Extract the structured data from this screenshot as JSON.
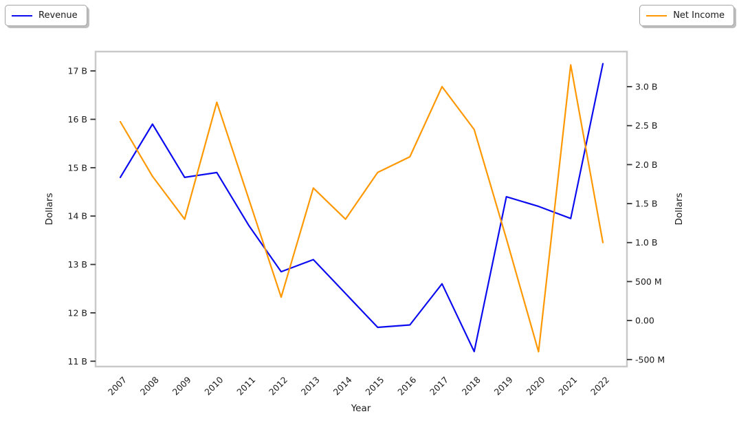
{
  "legend": {
    "revenue": {
      "label": "Revenue",
      "color": "#0b0bf0"
    },
    "net_income": {
      "label": "Net Income",
      "color": "#ff9800"
    }
  },
  "chart_data": {
    "type": "line",
    "title": "",
    "xlabel": "Year",
    "ylabel_left": "Dollars",
    "ylabel_right": "Dollars",
    "grid": false,
    "x_tick_labels": [
      "2007",
      "2008",
      "2009",
      "2010",
      "2011",
      "2012",
      "2013",
      "2014",
      "2015",
      "2016",
      "2017",
      "2018",
      "2019",
      "2020",
      "2021",
      "2022"
    ],
    "x": [
      2007,
      2008,
      2009,
      2010,
      2011,
      2012,
      2013,
      2014,
      2015,
      2016,
      2017,
      2018,
      2019,
      2020,
      2021,
      2022
    ],
    "series": [
      {
        "name": "Revenue",
        "axis": "left",
        "color": "#0b0bf0",
        "values_billions": [
          14.8,
          15.9,
          14.8,
          14.9,
          13.8,
          12.85,
          13.1,
          12.4,
          11.7,
          11.75,
          12.6,
          11.2,
          14.4,
          14.2,
          13.95,
          17.15
        ]
      },
      {
        "name": "Net Income",
        "axis": "right",
        "color": "#ff9800",
        "values_billions": [
          2.55,
          1.85,
          1.3,
          2.8,
          1.55,
          0.3,
          1.7,
          1.3,
          1.9,
          2.1,
          3.0,
          2.45,
          1.05,
          -0.4,
          3.28,
          1.0
        ]
      }
    ],
    "left_axis": {
      "range_billions": [
        10.89,
        17.4
      ],
      "ticks": [
        {
          "value": 17,
          "label": "17 B"
        },
        {
          "value": 16,
          "label": "16 B"
        },
        {
          "value": 15,
          "label": "15 B"
        },
        {
          "value": 14,
          "label": "14 B"
        },
        {
          "value": 13,
          "label": "13 B"
        },
        {
          "value": 12,
          "label": "12 B"
        },
        {
          "value": 11,
          "label": "11 B"
        }
      ]
    },
    "right_axis": {
      "range_billions": [
        -0.59,
        3.45
      ],
      "ticks": [
        {
          "value": 3.0,
          "label": "3.0 B"
        },
        {
          "value": 2.5,
          "label": "2.5 B"
        },
        {
          "value": 2.0,
          "label": "2.0 B"
        },
        {
          "value": 1.5,
          "label": "1.5 B"
        },
        {
          "value": 1.0,
          "label": "1.0 B"
        },
        {
          "value": 0.5,
          "label": "500 M"
        },
        {
          "value": 0.0,
          "label": "0.00"
        },
        {
          "value": -0.5,
          "label": "-500 M"
        }
      ]
    },
    "colors": {
      "spine": "#c9c9c9",
      "tick_mark": "#333333",
      "text": "#1a1a1a"
    }
  }
}
